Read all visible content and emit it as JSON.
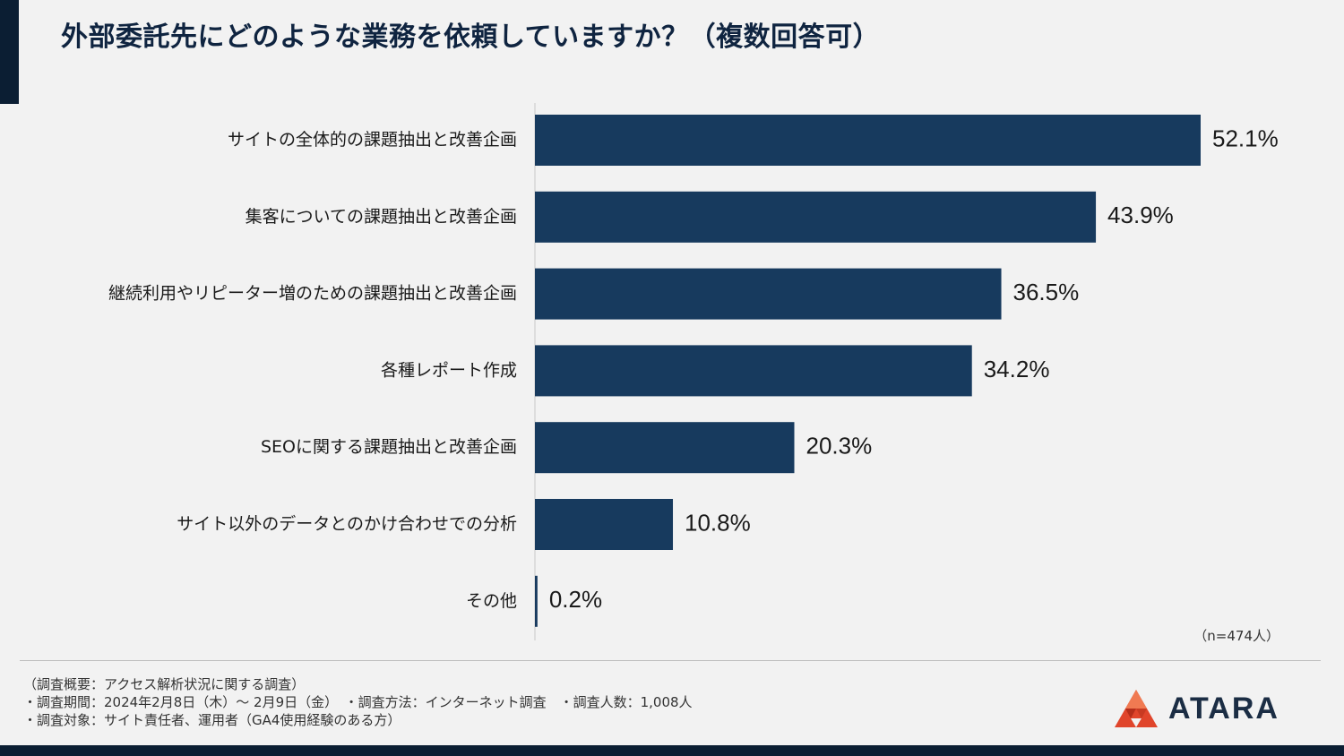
{
  "title": "外部委託先にどのような業務を依頼していますか？（複数回答可）",
  "sample_size": "（n=474人）",
  "notes": [
    "（調査概要：アクセス解析状況に関する調査）",
    "・調査期間：2024年2月8日（木）～ 2月9日（金）　・調査方法：インターネット調査　・調査人数：1,008人",
    "・調査対象：サイト責任者、運用者（GA4使用経験のある方）"
  ],
  "logo": {
    "text": "ATARA",
    "icon": "atara-logo-icon"
  },
  "colors": {
    "bar": "#173a5e",
    "accent": "#0b1e33",
    "logo_red": "#e0452b"
  },
  "chart_data": {
    "type": "bar",
    "orientation": "horizontal",
    "categories": [
      "サイトの全体的の課題抽出と改善企画",
      "集客についての課題抽出と改善企画",
      "継続利用やリピーター増のための課題抽出と改善企画",
      "各種レポート作成",
      "SEOに関する課題抽出と改善企画",
      "サイト以外のデータとのかけ合わせでの分析",
      "その他"
    ],
    "values": [
      52.1,
      43.9,
      36.5,
      34.2,
      20.3,
      10.8,
      0.2
    ],
    "value_labels": [
      "52.1%",
      "43.9%",
      "36.5%",
      "34.2%",
      "20.3%",
      "10.8%",
      "0.2%"
    ],
    "xlim": [
      0,
      60
    ],
    "grid": false
  }
}
